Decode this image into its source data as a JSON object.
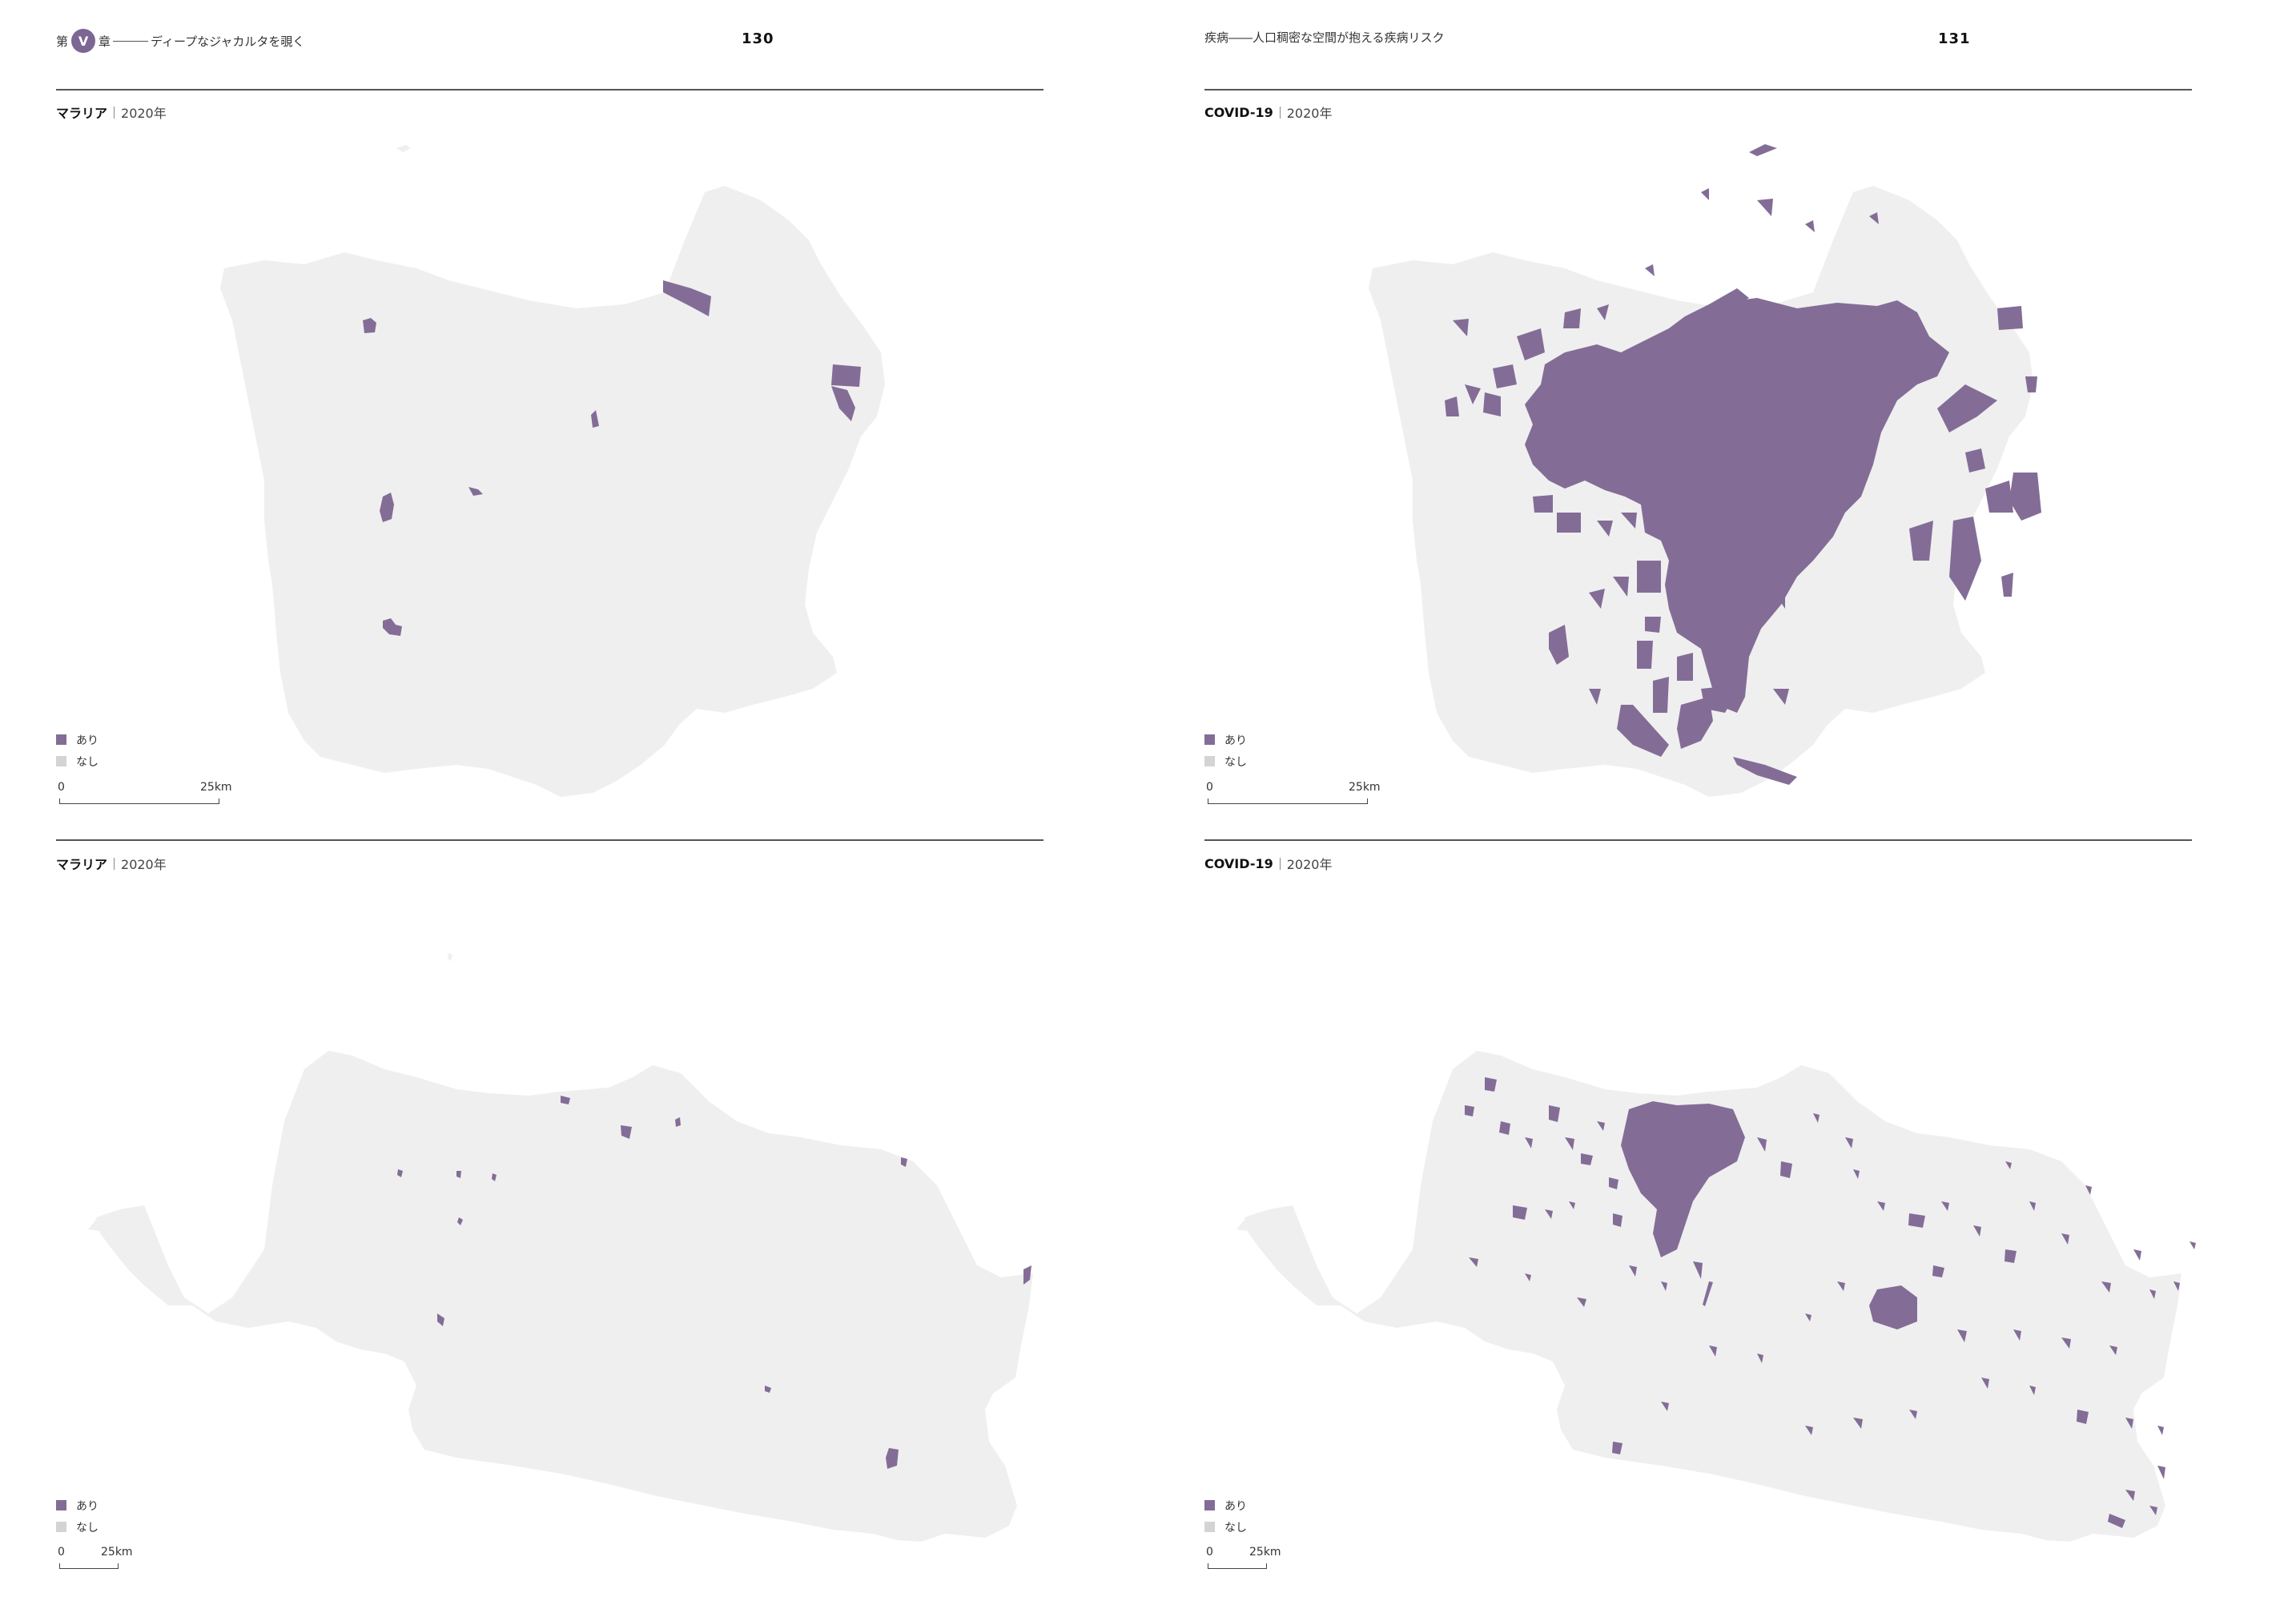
{
  "colors": {
    "present": "#836d97",
    "absent": "#efefef",
    "absent_legend": "#d4d4d4",
    "badge": "#7b6694"
  },
  "left_page": {
    "running_head": {
      "prefix": "第",
      "chapter": "V",
      "suffix": "章",
      "title": "ディープなジャカルタを覗く"
    },
    "page_number": "130"
  },
  "right_page": {
    "running_head": {
      "title": "疾病――人口稠密な空間が抱える疾病リスク"
    },
    "page_number": "131"
  },
  "panels": [
    {
      "title": "マラリア",
      "year": "2020年",
      "legend": {
        "present": "あり",
        "absent": "なし"
      },
      "scale": {
        "zero": "0",
        "distance": "25km"
      }
    },
    {
      "title": "COVID-19",
      "year": "2020年",
      "legend": {
        "present": "あり",
        "absent": "なし"
      },
      "scale": {
        "zero": "0",
        "distance": "25km"
      }
    },
    {
      "title": "マラリア",
      "year": "2020年",
      "legend": {
        "present": "あり",
        "absent": "なし"
      },
      "scale": {
        "zero": "0",
        "distance": "25km"
      }
    },
    {
      "title": "COVID-19",
      "year": "2020年",
      "legend": {
        "present": "あり",
        "absent": "なし"
      },
      "scale": {
        "zero": "0",
        "distance": "25km"
      }
    }
  ]
}
